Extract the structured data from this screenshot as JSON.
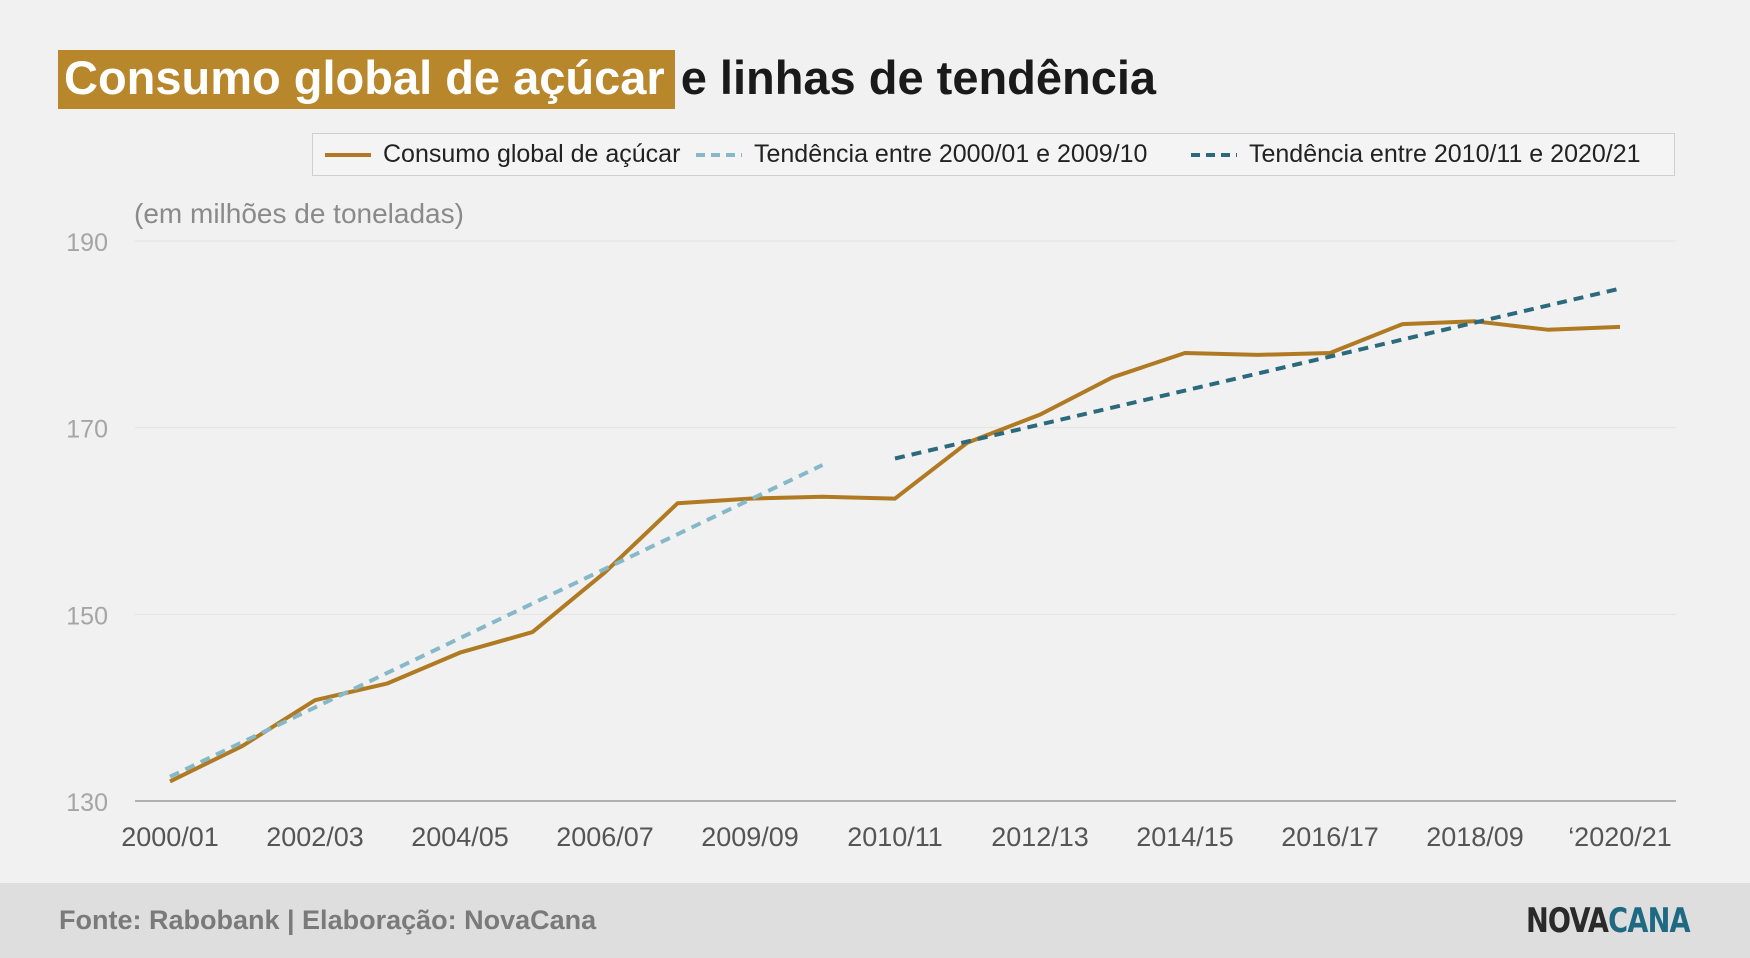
{
  "header": {
    "title_highlight": "Consumo global de açúcar",
    "title_rest": "e linhas de tendência"
  },
  "legend": {
    "items": [
      {
        "label": "Consumo global de açúcar",
        "color": "#b07a22",
        "style": "solid"
      },
      {
        "label": "Tendência entre 2000/01 e 2009/10",
        "color": "#86b9c8",
        "style": "dashed"
      },
      {
        "label": "Tendência entre 2010/11 e 2020/21",
        "color": "#2a6a7c",
        "style": "dashed"
      }
    ],
    "placement": "top-right"
  },
  "unit_label": "(em milhões de toneladas)",
  "chart_data": {
    "type": "line",
    "title": "Consumo global de açúcar e linhas de tendência",
    "ylabel": "(em milhões de toneladas)",
    "xlabel": "",
    "ylim": [
      130,
      190
    ],
    "yticks": [
      130,
      150,
      170,
      190
    ],
    "grid": true,
    "x_tick_labels": [
      "2000/01",
      "2002/03",
      "2004/05",
      "2006/07",
      "2009/09",
      "2010/11",
      "2012/13",
      "2014/15",
      "2016/17",
      "2018/09",
      "‘2020/21"
    ],
    "series": [
      {
        "name": "Consumo global de açúcar",
        "color": "#b07a22",
        "style": "solid",
        "x_index": [
          0,
          0.5,
          1,
          1.5,
          2,
          2.5,
          3,
          3.5,
          4,
          4.5,
          5,
          5.5,
          6,
          6.5,
          7,
          7.5,
          8,
          8.5,
          9,
          9.5,
          10,
          10.5
        ],
        "values": [
          132.1,
          135.9,
          140.8,
          142.6,
          145.9,
          148.1,
          154.5,
          161.9,
          162.4,
          162.6,
          162.4,
          168.4,
          171.4,
          175.4,
          178.0,
          177.8,
          178.0,
          181.1,
          181.4,
          180.5,
          180.8,
          null
        ]
      },
      {
        "name": "Tendência entre 2000/01 e 2009/10",
        "color": "#86b9c8",
        "style": "dashed",
        "x_index": [
          0,
          4.5
        ],
        "values": [
          132.6,
          166.0
        ]
      },
      {
        "name": "Tendência entre 2010/11 e 2020/21",
        "color": "#2a6a7c",
        "style": "dashed",
        "x_index": [
          5,
          10
        ],
        "values": [
          166.7,
          184.9
        ]
      }
    ]
  },
  "footer": {
    "source": "Fonte: Rabobank | Elaboração: NovaCana",
    "logo_part1": "NOVA",
    "logo_part2": "CANA"
  }
}
